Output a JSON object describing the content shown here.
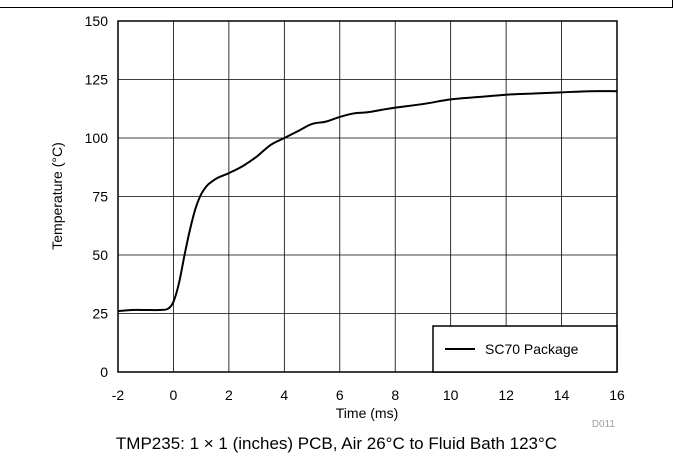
{
  "chart_data": {
    "type": "line",
    "title": "",
    "xlabel": "Time (ms)",
    "ylabel": "Temperature (°C)",
    "xlim": [
      -2,
      16
    ],
    "ylim": [
      0,
      150
    ],
    "x_ticks": [
      -2,
      0,
      2,
      4,
      6,
      8,
      10,
      12,
      14,
      16
    ],
    "y_ticks": [
      0,
      25,
      50,
      75,
      100,
      125,
      150
    ],
    "grid": true,
    "legend_position": "bottom-right",
    "series": [
      {
        "name": "SC70 Package",
        "color": "#000000",
        "x": [
          -2,
          -1.5,
          -1,
          -0.5,
          -0.2,
          0,
          0.2,
          0.4,
          0.6,
          0.8,
          1.0,
          1.2,
          1.4,
          1.6,
          1.8,
          2.0,
          2.5,
          3.0,
          3.5,
          4.0,
          4.5,
          5.0,
          5.5,
          6.0,
          6.5,
          7.0,
          7.5,
          8.0,
          9.0,
          10.0,
          11.0,
          12.0,
          13.0,
          14.0,
          15.0,
          16.0
        ],
        "y": [
          26,
          26.5,
          26.5,
          26.5,
          27,
          30,
          38,
          50,
          61,
          70,
          76,
          79.5,
          81.5,
          83,
          84,
          85,
          88,
          92,
          97,
          100,
          103,
          106,
          107,
          109,
          110.5,
          111,
          112,
          113,
          114.5,
          116.5,
          117.5,
          118.5,
          119,
          119.5,
          120,
          120
        ]
      }
    ],
    "legend": [
      "SC70 Package"
    ],
    "figure_code": "D011"
  },
  "caption": "TMP235: 1 × 1 (inches) PCB, Air 26°C to Fluid Bath 123°C"
}
